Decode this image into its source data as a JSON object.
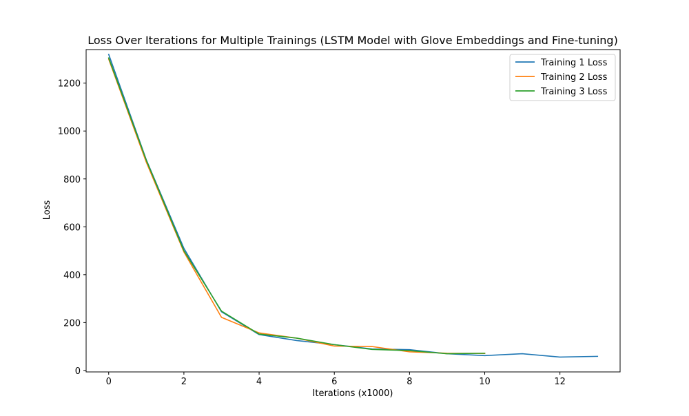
{
  "chart_data": {
    "type": "line",
    "title": "Loss Over Iterations for Multiple Trainings (LSTM Model with Glove Embeddings and Fine-tuning)",
    "xlabel": "Iterations (x1000)",
    "ylabel": "Loss",
    "xlim": [
      -0.6,
      13.6
    ],
    "ylim": [
      -6,
      1340
    ],
    "x_ticks": [
      0,
      2,
      4,
      6,
      8,
      10,
      12
    ],
    "y_ticks": [
      0,
      200,
      400,
      600,
      800,
      1000,
      1200
    ],
    "grid": false,
    "legend_position": "top-right",
    "series": [
      {
        "name": "Training 1 Loss",
        "color": "#1f77b4",
        "x": [
          0,
          1,
          2,
          3,
          4,
          5,
          6,
          7,
          8,
          9,
          10,
          11,
          12,
          13
        ],
        "y": [
          1320,
          880,
          510,
          245,
          150,
          125,
          108,
          90,
          87,
          70,
          62,
          70,
          56,
          59
        ]
      },
      {
        "name": "Training 2 Loss",
        "color": "#ff7f0e",
        "x": [
          0,
          1,
          2,
          3,
          4,
          5,
          6,
          7,
          8,
          9,
          10
        ],
        "y": [
          1300,
          870,
          495,
          222,
          157,
          135,
          102,
          100,
          78,
          72,
          71
        ]
      },
      {
        "name": "Training 3 Loss",
        "color": "#2ca02c",
        "x": [
          0,
          1,
          2,
          3,
          4,
          5,
          6,
          7,
          8,
          9,
          10
        ],
        "y": [
          1305,
          878,
          500,
          248,
          152,
          135,
          108,
          88,
          83,
          70,
          72
        ]
      }
    ]
  }
}
